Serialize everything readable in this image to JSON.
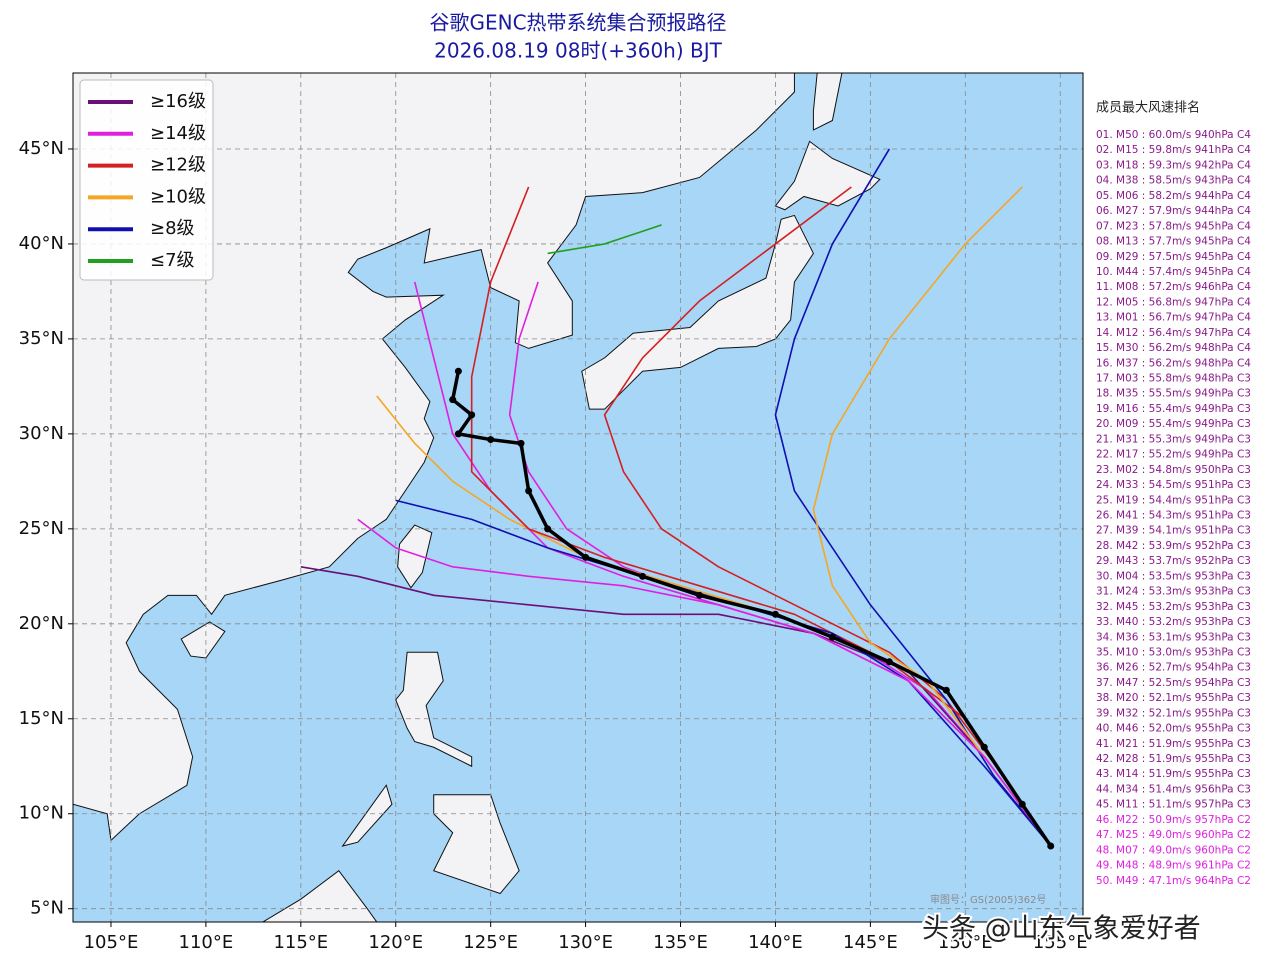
{
  "title": [
    "谷歌GENC热带系统集合预报路径",
    "2026.08.19 08时(+360h) BJT"
  ],
  "legend": [
    {
      "label": "≥16级",
      "color": "#6a0f78"
    },
    {
      "label": "≥14级",
      "color": "#e020e0"
    },
    {
      "label": "≥12级",
      "color": "#d42020"
    },
    {
      "label": "≥10级",
      "color": "#f5a623"
    },
    {
      "label": "≥8级",
      "color": "#1010b0"
    },
    {
      "label": "≤7级",
      "color": "#20a020"
    }
  ],
  "map": {
    "lonlim": [
      103,
      156.2
    ],
    "latlim": [
      4.3,
      49
    ],
    "lonticks": [
      {
        "value": 105,
        "label": "105°E"
      },
      {
        "value": 110,
        "label": "110°E"
      },
      {
        "value": 115,
        "label": "115°E"
      },
      {
        "value": 120,
        "label": "120°E"
      },
      {
        "value": 125,
        "label": "125°E"
      },
      {
        "value": 130,
        "label": "130°E"
      },
      {
        "value": 135,
        "label": "135°E"
      },
      {
        "value": 140,
        "label": "140°E"
      },
      {
        "value": 145,
        "label": "145°E"
      },
      {
        "value": 150,
        "label": "150°E"
      },
      {
        "value": 155,
        "label": "155°E"
      }
    ],
    "latticks": [
      {
        "value": 5,
        "label": "5°N"
      },
      {
        "value": 10,
        "label": "10°N"
      },
      {
        "value": 15,
        "label": "15°N"
      },
      {
        "value": 20,
        "label": "20°N"
      },
      {
        "value": 25,
        "label": "25°N"
      },
      {
        "value": 30,
        "label": "30°N"
      },
      {
        "value": 35,
        "label": "35°N"
      },
      {
        "value": 40,
        "label": "40°N"
      },
      {
        "value": 45,
        "label": "45°N"
      }
    ],
    "grid": true,
    "tracks": [
      {
        "color": "#d42020",
        "lon": [
          154.5,
          152,
          149,
          146,
          143,
          140,
          137,
          134,
          132,
          131,
          133,
          136,
          140,
          144
        ],
        "lat": [
          8.3,
          12,
          16,
          18.5,
          20,
          21.5,
          23,
          25,
          28,
          31,
          34,
          37,
          40,
          43
        ]
      },
      {
        "color": "#e020e0",
        "lon": [
          154.5,
          151,
          148,
          144,
          140,
          136,
          132,
          129,
          127,
          126,
          126.5,
          127.5
        ],
        "lat": [
          8.3,
          13,
          16.5,
          19,
          20.5,
          21.5,
          23,
          25,
          28,
          31,
          35,
          38
        ]
      },
      {
        "color": "#f5a623",
        "lon": [
          154.5,
          151,
          148,
          144,
          140,
          135,
          130,
          126,
          123,
          121,
          119
        ],
        "lat": [
          8.3,
          13,
          17,
          19,
          20.5,
          22,
          23.5,
          25.5,
          27.5,
          29.5,
          32
        ]
      },
      {
        "color": "#1010b0",
        "lon": [
          154.5,
          151.5,
          149,
          147,
          145,
          143,
          141,
          140,
          141,
          143,
          146
        ],
        "lat": [
          8.3,
          12,
          16,
          18.5,
          21,
          24,
          27,
          31,
          35,
          40,
          45
        ]
      },
      {
        "color": "#6a0f78",
        "lon": [
          154.5,
          151,
          147,
          142,
          137,
          132,
          127,
          122,
          118,
          115
        ],
        "lat": [
          8.3,
          13,
          17.5,
          19.5,
          20.5,
          20.5,
          21,
          21.5,
          22.5,
          23
        ]
      },
      {
        "color": "#e020e0",
        "lon": [
          154.5,
          151,
          147,
          142,
          137,
          132,
          128,
          125,
          123,
          122,
          121
        ],
        "lat": [
          8.3,
          13,
          17,
          19.5,
          21,
          22.5,
          24,
          27,
          30,
          34,
          38
        ]
      },
      {
        "color": "#d42020",
        "lon": [
          154.5,
          150,
          146,
          141,
          136,
          131,
          127,
          124,
          124,
          125,
          127
        ],
        "lat": [
          8.3,
          15,
          18,
          20.5,
          22,
          23.5,
          25,
          28,
          33,
          38,
          43
        ]
      },
      {
        "color": "#f5a623",
        "lon": [
          154.5,
          151,
          148,
          145,
          143,
          142,
          143,
          146,
          150,
          153
        ],
        "lat": [
          8.3,
          13,
          17,
          19,
          22,
          26,
          30,
          35,
          40,
          43
        ]
      },
      {
        "color": "#1010b0",
        "lon": [
          154.5,
          151,
          147,
          143,
          138,
          133,
          128,
          124,
          120
        ],
        "lat": [
          8.3,
          12.5,
          17,
          19.5,
          21,
          22.5,
          24,
          25.5,
          26.5
        ]
      },
      {
        "color": "#e020e0",
        "lon": [
          154.5,
          151,
          147,
          142,
          137,
          132,
          127,
          123,
          120,
          118
        ],
        "lat": [
          8.3,
          13,
          17,
          19.5,
          21,
          22,
          22.5,
          23,
          24,
          25.5
        ]
      },
      {
        "color": "#20a020",
        "lon": [
          128,
          131,
          134
        ],
        "lat": [
          39.5,
          40,
          41
        ]
      }
    ],
    "mean_track": {
      "color": "#000000",
      "lon": [
        154.5,
        153,
        151,
        149,
        146,
        143,
        140,
        136,
        133,
        130,
        128,
        127,
        126.6,
        125,
        123.3,
        124,
        123,
        123.3
      ],
      "lat": [
        8.3,
        10.5,
        13.5,
        16.5,
        18,
        19.3,
        20.5,
        21.5,
        22.5,
        23.5,
        25,
        27,
        29.5,
        29.7,
        30,
        31,
        31.8,
        33.3
      ]
    }
  },
  "ranking": {
    "title": "成员最大风速排名",
    "groups": [
      {
        "color": "#8a1a8a",
        "items": [
          "01. M50 : 60.0m/s 940hPa C4",
          "02. M15 : 59.8m/s 941hPa C4",
          "03. M18 : 59.3m/s 942hPa C4",
          "04. M38 : 58.5m/s 943hPa C4",
          "05. M06 : 58.2m/s 944hPa C4",
          "06. M27 : 57.9m/s 944hPa C4",
          "07. M23 : 57.8m/s 945hPa C4",
          "08. M13 : 57.7m/s 945hPa C4",
          "09. M29 : 57.5m/s 945hPa C4",
          "10. M44 : 57.4m/s 945hPa C4",
          "11. M08 : 57.2m/s 946hPa C4",
          "12. M05 : 56.8m/s 947hPa C4",
          "13. M01 : 56.7m/s 947hPa C4",
          "14. M12 : 56.4m/s 947hPa C4",
          "15. M30 : 56.2m/s 948hPa C4",
          "16. M37 : 56.2m/s 948hPa C4",
          "17. M03 : 55.8m/s 948hPa C3",
          "18. M35 : 55.5m/s 949hPa C3",
          "19. M16 : 55.4m/s 949hPa C3",
          "20. M09 : 55.4m/s 949hPa C3",
          "21. M31 : 55.3m/s 949hPa C3",
          "22. M17 : 55.2m/s 949hPa C3",
          "23. M02 : 54.8m/s 950hPa C3",
          "24. M33 : 54.5m/s 951hPa C3",
          "25. M19 : 54.4m/s 951hPa C3",
          "26. M41 : 54.3m/s 951hPa C3",
          "27. M39 : 54.1m/s 951hPa C3",
          "28. M42 : 53.9m/s 952hPa C3",
          "29. M43 : 53.7m/s 952hPa C3",
          "30. M04 : 53.5m/s 953hPa C3",
          "31. M24 : 53.3m/s 953hPa C3",
          "32. M45 : 53.2m/s 953hPa C3",
          "33. M40 : 53.2m/s 953hPa C3",
          "34. M36 : 53.1m/s 953hPa C3",
          "35. M10 : 53.0m/s 953hPa C3",
          "36. M26 : 52.7m/s 954hPa C3",
          "37. M47 : 52.5m/s 954hPa C3",
          "38. M20 : 52.1m/s 955hPa C3",
          "39. M32 : 52.1m/s 955hPa C3",
          "40. M46 : 52.0m/s 955hPa C3",
          "41. M21 : 51.9m/s 955hPa C3",
          "42. M28 : 51.9m/s 955hPa C3",
          "43. M14 : 51.9m/s 955hPa C3",
          "44. M34 : 51.4m/s 956hPa C3",
          "45. M11 : 51.1m/s 957hPa C3"
        ]
      },
      {
        "color": "#e020e0",
        "items": [
          "46. M22 : 50.9m/s 957hPa C2",
          "47. M25 : 49.0m/s 960hPa C2",
          "48. M07 : 49.0m/s 960hPa C2",
          "49. M48 : 48.9m/s 961hPa C2",
          "50. M49 : 47.1m/s 964hPa C2"
        ]
      }
    ]
  },
  "credits": [
    "审图号：GS(2005)362号",
    "头条 @山东气象爱好者"
  ]
}
